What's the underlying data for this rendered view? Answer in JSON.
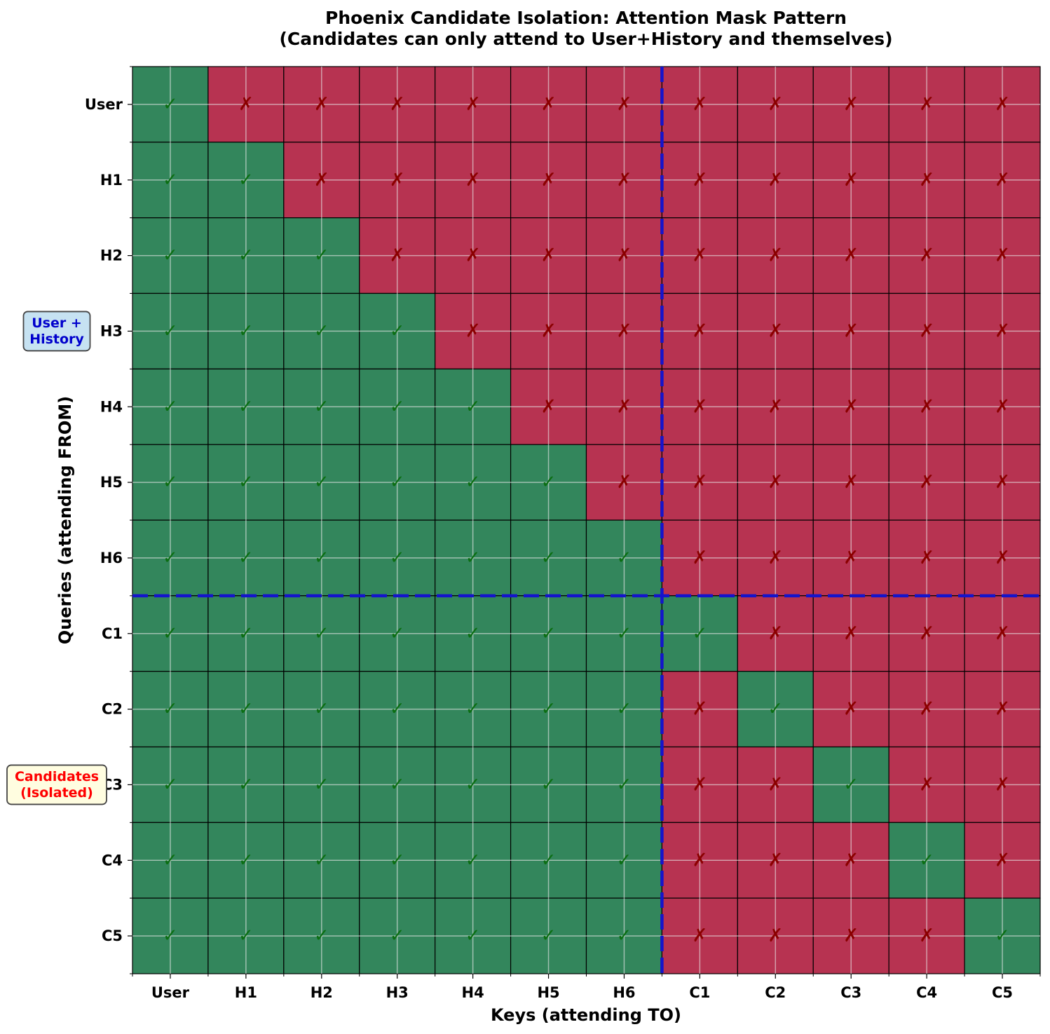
{
  "chart_data": {
    "type": "heatmap",
    "title": "Phoenix Candidate Isolation: Attention Mask Pattern",
    "subtitle": "(Candidates can only attend to User+History and themselves)",
    "xlabel": "Keys (attending TO)",
    "ylabel": "Queries (attending FROM)",
    "x_labels": [
      "User",
      "H1",
      "H2",
      "H3",
      "H4",
      "H5",
      "H6",
      "C1",
      "C2",
      "C3",
      "C4",
      "C5"
    ],
    "y_labels": [
      "User",
      "H1",
      "H2",
      "H3",
      "H4",
      "H5",
      "H6",
      "C1",
      "C2",
      "C3",
      "C4",
      "C5"
    ],
    "values": [
      [
        1,
        0,
        0,
        0,
        0,
        0,
        0,
        0,
        0,
        0,
        0,
        0
      ],
      [
        1,
        1,
        0,
        0,
        0,
        0,
        0,
        0,
        0,
        0,
        0,
        0
      ],
      [
        1,
        1,
        1,
        0,
        0,
        0,
        0,
        0,
        0,
        0,
        0,
        0
      ],
      [
        1,
        1,
        1,
        1,
        0,
        0,
        0,
        0,
        0,
        0,
        0,
        0
      ],
      [
        1,
        1,
        1,
        1,
        1,
        0,
        0,
        0,
        0,
        0,
        0,
        0
      ],
      [
        1,
        1,
        1,
        1,
        1,
        1,
        0,
        0,
        0,
        0,
        0,
        0
      ],
      [
        1,
        1,
        1,
        1,
        1,
        1,
        1,
        0,
        0,
        0,
        0,
        0
      ],
      [
        1,
        1,
        1,
        1,
        1,
        1,
        1,
        1,
        0,
        0,
        0,
        0
      ],
      [
        1,
        1,
        1,
        1,
        1,
        1,
        1,
        0,
        1,
        0,
        0,
        0
      ],
      [
        1,
        1,
        1,
        1,
        1,
        1,
        1,
        0,
        0,
        1,
        0,
        0
      ],
      [
        1,
        1,
        1,
        1,
        1,
        1,
        1,
        0,
        0,
        0,
        1,
        0
      ],
      [
        1,
        1,
        1,
        1,
        1,
        1,
        1,
        0,
        0,
        0,
        0,
        1
      ]
    ],
    "allowed_symbol": "✓",
    "blocked_symbol": "✗",
    "colors": {
      "allowed_cell": "#33865c",
      "blocked_cell": "#b73351",
      "allowed_mark": "#0b6e12",
      "blocked_mark": "#8b0000",
      "divider": "#1414cc",
      "cell_border": "#000000",
      "grid": "#e8e8e8"
    },
    "divider_after_index": 6,
    "group_labels": [
      {
        "text": "User +\nHistory",
        "color": "#0000cc",
        "background": "#c6e2f2",
        "rows": [
          0,
          6
        ]
      },
      {
        "text": "Candidates\n(Isolated)",
        "color": "#ff0000",
        "background": "#fffde0",
        "rows": [
          7,
          11
        ]
      }
    ]
  }
}
